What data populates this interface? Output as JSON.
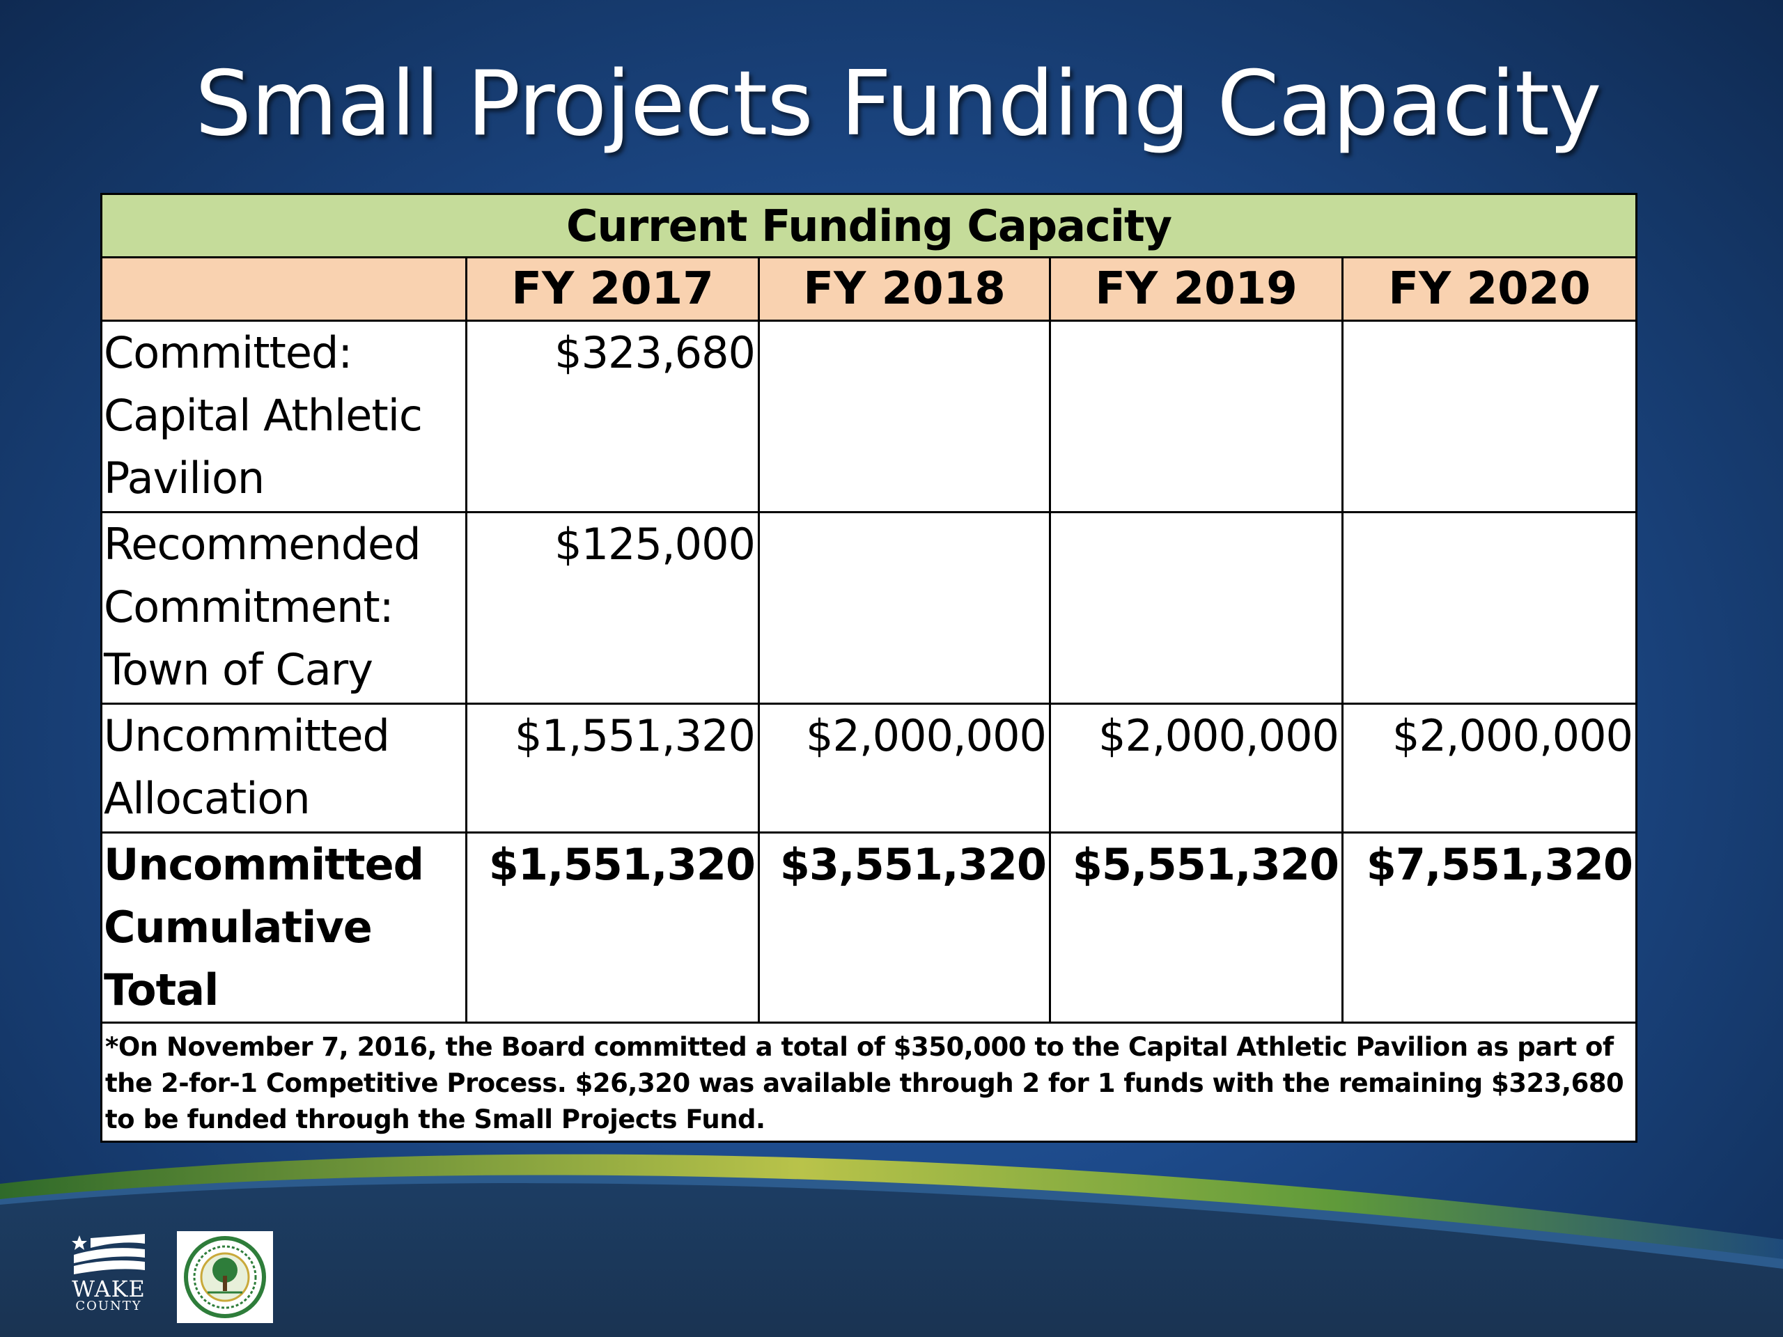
{
  "slide": {
    "title": "Small Projects Funding Capacity"
  },
  "table": {
    "caption": "Current Funding Capacity",
    "headers": [
      "",
      "FY 2017",
      "FY 2018",
      "FY 2019",
      "FY 2020"
    ],
    "rows": [
      {
        "label": [
          "Committed:",
          "Capital Athletic",
          "Pavilion"
        ],
        "values": [
          "$323,680",
          "",
          "",
          ""
        ]
      },
      {
        "label": [
          "Recommended",
          "Commitment:",
          "Town of Cary"
        ],
        "values": [
          "$125,000",
          "",
          "",
          ""
        ]
      },
      {
        "label": [
          "Uncommitted",
          "Allocation"
        ],
        "values": [
          "$1,551,320",
          "$2,000,000",
          "$2,000,000",
          "$2,000,000"
        ]
      },
      {
        "label": [
          "Uncommitted",
          "Cumulative Total"
        ],
        "values": [
          "$1,551,320",
          "$3,551,320",
          "$5,551,320",
          "$7,551,320"
        ],
        "bold": true
      }
    ],
    "footnote": "*On November 7, 2016, the Board committed a total of $350,000 to the Capital Athletic Pavilion as part of the 2-for-1 Competitive Process.  $26,320 was available through 2 for 1 funds with the remaining $323,680 to be funded through the Small Projects Fund."
  },
  "logos": {
    "wake_name": "WAKE",
    "wake_sub": "COUNTY",
    "seal_icon": "wake-county-parks-seal-icon"
  },
  "colors": {
    "caption_bg": "#c5dc9a",
    "header_bg": "#f9d2b0",
    "background": "#1d4a8a"
  }
}
